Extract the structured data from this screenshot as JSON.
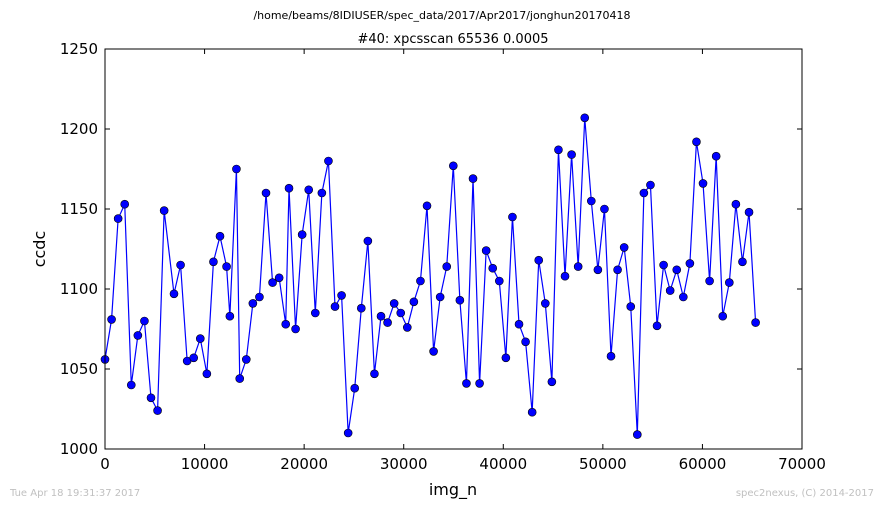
{
  "chart_data": {
    "type": "line",
    "suptitle": "/home/beams/8IDIUSER/spec_data/2017/Apr2017/jonghun20170418",
    "title": "#40: xpcsscan 65536 0.0005",
    "xlabel": "img_n",
    "ylabel": "ccdc",
    "xlim": [
      0,
      70000
    ],
    "ylim": [
      1000,
      1250
    ],
    "xticks": [
      0,
      10000,
      20000,
      30000,
      40000,
      50000,
      60000,
      70000
    ],
    "yticks": [
      1000,
      1050,
      1100,
      1150,
      1200,
      1250
    ],
    "grid": false,
    "legend": "none",
    "line_color": "#0000ff",
    "marker": "circle",
    "series": [
      {
        "x": [
          0,
          660,
          1320,
          1980,
          2640,
          3300,
          3960,
          4620,
          5280,
          5940,
          6930,
          7590,
          8250,
          8910,
          9570,
          10230,
          10890,
          11550,
          12210,
          12540,
          13200,
          13530,
          14190,
          14850,
          15510,
          16170,
          16830,
          17490,
          18150,
          18480,
          19140,
          19800,
          20460,
          21120,
          21780,
          22440,
          23100,
          23760,
          24420,
          25080,
          25740,
          26400,
          27060,
          27720,
          28380,
          29040,
          29700,
          30360,
          31020,
          31680,
          32340,
          33000,
          33660,
          34320,
          34980,
          35640,
          36300,
          36960,
          37620,
          38280,
          38940,
          39600,
          40260,
          40920,
          41580,
          42240,
          42900,
          43560,
          44220,
          44880,
          45540,
          46200,
          46860,
          47520,
          48180,
          48840,
          49500,
          50160,
          50820,
          51480,
          52140,
          52800,
          53460,
          54120,
          54780,
          55440,
          56100,
          56760,
          57420,
          58080,
          58740,
          59400,
          60060,
          60720,
          61380,
          62040,
          62700,
          63360,
          64020,
          64680,
          65340
        ],
        "y": [
          1056,
          1081,
          1144,
          1153,
          1040,
          1071,
          1080,
          1032,
          1024,
          1149,
          1097,
          1115,
          1055,
          1057,
          1069,
          1047,
          1117,
          1133,
          1114,
          1083,
          1175,
          1044,
          1056,
          1091,
          1095,
          1160,
          1104,
          1107,
          1078,
          1163,
          1075,
          1134,
          1162,
          1085,
          1160,
          1180,
          1089,
          1096,
          1010,
          1038,
          1088,
          1130,
          1047,
          1083,
          1079,
          1091,
          1085,
          1076,
          1092,
          1105,
          1152,
          1061,
          1095,
          1114,
          1177,
          1093,
          1041,
          1169,
          1041,
          1124,
          1113,
          1105,
          1057,
          1145,
          1078,
          1067,
          1023,
          1118,
          1091,
          1042,
          1187,
          1108,
          1184,
          1114,
          1207,
          1155,
          1112,
          1150,
          1058,
          1112,
          1126,
          1089,
          1009,
          1160,
          1165,
          1077,
          1115,
          1099,
          1112,
          1095,
          1116,
          1192,
          1166,
          1105,
          1183,
          1083,
          1104,
          1153,
          1117,
          1148,
          1079
        ]
      }
    ]
  },
  "footer": {
    "left": "Tue Apr 18 19:31:37 2017",
    "right": "spec2nexus, (C) 2014-2017"
  }
}
